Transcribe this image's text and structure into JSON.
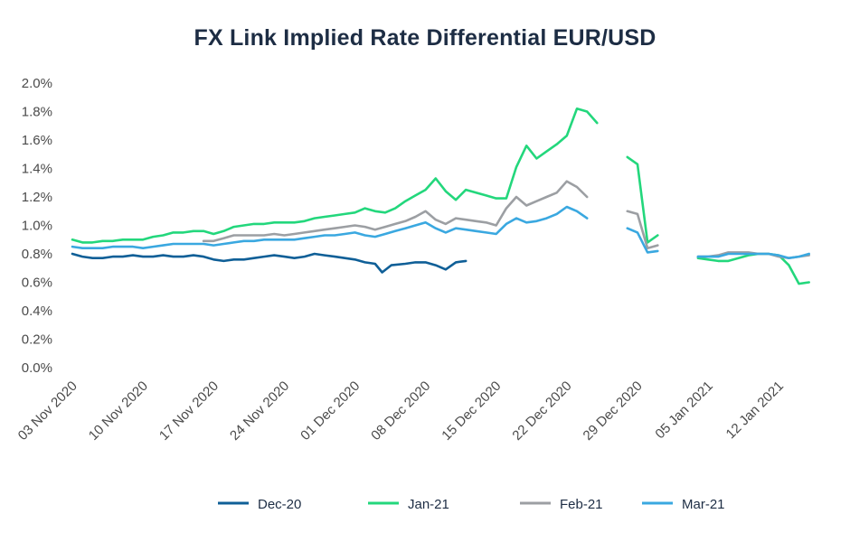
{
  "chart_data": {
    "type": "line",
    "title": "FX Link Implied Rate Differential EUR/USD",
    "xlabel": "",
    "ylabel": "",
    "ylim": [
      0,
      2.0
    ],
    "y_tick_format": "percent",
    "y_ticks": [
      "0.0%",
      "0.2%",
      "0.4%",
      "0.6%",
      "0.8%",
      "1.0%",
      "1.2%",
      "1.4%",
      "1.6%",
      "1.8%",
      "2.0%"
    ],
    "y_tick_values": [
      0,
      0.2,
      0.4,
      0.6,
      0.8,
      1.0,
      1.2,
      1.4,
      1.6,
      1.8,
      2.0
    ],
    "x_range": [
      0,
      75
    ],
    "x_ticks": [
      {
        "x": 0,
        "label": "03 Nov 2020"
      },
      {
        "x": 7,
        "label": "10 Nov 2020"
      },
      {
        "x": 14,
        "label": "17 Nov 2020"
      },
      {
        "x": 21,
        "label": "24 Nov 2020"
      },
      {
        "x": 28,
        "label": "01 Dec 2020"
      },
      {
        "x": 35,
        "label": "08 Dec 2020"
      },
      {
        "x": 42,
        "label": "15 Dec 2020"
      },
      {
        "x": 49,
        "label": "22 Dec 2020"
      },
      {
        "x": 56,
        "label": "29 Dec 2020"
      },
      {
        "x": 63,
        "label": "05 Jan 2021"
      },
      {
        "x": 70,
        "label": "12 Jan 2021"
      }
    ],
    "x_unit": "days since 03 Nov 2020",
    "legend_position": "bottom-center",
    "series": [
      {
        "name": "Dec-20",
        "color": "#0f5f97",
        "segments": [
          [
            [
              0,
              0.8
            ],
            [
              1,
              0.78
            ],
            [
              2,
              0.77
            ],
            [
              3,
              0.77
            ],
            [
              4,
              0.78
            ],
            [
              5,
              0.78
            ],
            [
              6,
              0.79
            ],
            [
              7,
              0.78
            ],
            [
              8,
              0.78
            ],
            [
              9,
              0.79
            ],
            [
              10,
              0.78
            ],
            [
              11,
              0.78
            ],
            [
              12,
              0.79
            ],
            [
              13,
              0.78
            ],
            [
              14,
              0.76
            ],
            [
              15,
              0.75
            ],
            [
              16,
              0.76
            ],
            [
              17,
              0.76
            ],
            [
              18,
              0.77
            ],
            [
              19,
              0.78
            ],
            [
              20,
              0.79
            ],
            [
              21,
              0.78
            ],
            [
              22,
              0.77
            ],
            [
              23,
              0.78
            ],
            [
              24,
              0.8
            ],
            [
              25,
              0.79
            ],
            [
              26,
              0.78
            ],
            [
              27,
              0.77
            ],
            [
              28,
              0.76
            ],
            [
              29,
              0.74
            ],
            [
              30,
              0.73
            ],
            [
              30.7,
              0.67
            ],
            [
              31.6,
              0.72
            ],
            [
              33,
              0.73
            ],
            [
              34,
              0.74
            ],
            [
              35,
              0.74
            ],
            [
              36,
              0.72
            ],
            [
              37,
              0.69
            ],
            [
              38,
              0.74
            ],
            [
              39,
              0.75
            ]
          ]
        ]
      },
      {
        "name": "Jan-21",
        "color": "#23d77c",
        "segments": [
          [
            [
              0,
              0.9
            ],
            [
              1,
              0.88
            ],
            [
              2,
              0.88
            ],
            [
              3,
              0.89
            ],
            [
              4,
              0.89
            ],
            [
              5,
              0.9
            ],
            [
              6,
              0.9
            ],
            [
              7,
              0.9
            ],
            [
              8,
              0.92
            ],
            [
              9,
              0.93
            ],
            [
              10,
              0.95
            ],
            [
              11,
              0.95
            ],
            [
              12,
              0.96
            ],
            [
              13,
              0.96
            ],
            [
              14,
              0.94
            ],
            [
              15,
              0.96
            ],
            [
              16,
              0.99
            ],
            [
              17,
              1.0
            ],
            [
              18,
              1.01
            ],
            [
              19,
              1.01
            ],
            [
              20,
              1.02
            ],
            [
              21,
              1.02
            ],
            [
              22,
              1.02
            ],
            [
              23,
              1.03
            ],
            [
              24,
              1.05
            ],
            [
              25,
              1.06
            ],
            [
              26,
              1.07
            ],
            [
              27,
              1.08
            ],
            [
              28,
              1.09
            ],
            [
              29,
              1.12
            ],
            [
              30,
              1.1
            ],
            [
              31,
              1.09
            ],
            [
              32,
              1.12
            ],
            [
              33,
              1.17
            ],
            [
              34,
              1.21
            ],
            [
              35,
              1.25
            ],
            [
              36,
              1.33
            ],
            [
              37,
              1.24
            ],
            [
              38,
              1.18
            ],
            [
              39,
              1.25
            ],
            [
              40,
              1.23
            ],
            [
              41,
              1.21
            ],
            [
              42,
              1.19
            ],
            [
              43,
              1.19
            ],
            [
              44,
              1.41
            ],
            [
              45,
              1.56
            ],
            [
              46,
              1.47
            ],
            [
              47,
              1.52
            ],
            [
              48,
              1.57
            ],
            [
              49,
              1.63
            ],
            [
              50,
              1.82
            ],
            [
              51,
              1.8
            ],
            [
              52,
              1.72
            ]
          ],
          [
            [
              55,
              1.48
            ],
            [
              56,
              1.43
            ],
            [
              57,
              0.88
            ],
            [
              58,
              0.93
            ]
          ],
          [
            [
              62,
              0.77
            ],
            [
              63,
              0.76
            ],
            [
              64,
              0.75
            ],
            [
              65,
              0.75
            ],
            [
              66,
              0.77
            ],
            [
              67,
              0.79
            ],
            [
              68,
              0.8
            ],
            [
              69,
              0.8
            ],
            [
              70,
              0.79
            ],
            [
              71,
              0.72
            ],
            [
              72,
              0.59
            ],
            [
              73,
              0.6
            ]
          ]
        ]
      },
      {
        "name": "Feb-21",
        "color": "#9c9fa3",
        "segments": [
          [
            [
              13,
              0.89
            ],
            [
              14,
              0.89
            ],
            [
              15,
              0.91
            ],
            [
              16,
              0.93
            ],
            [
              17,
              0.93
            ],
            [
              18,
              0.93
            ],
            [
              19,
              0.93
            ],
            [
              20,
              0.94
            ],
            [
              21,
              0.93
            ],
            [
              22,
              0.94
            ],
            [
              23,
              0.95
            ],
            [
              24,
              0.96
            ],
            [
              25,
              0.97
            ],
            [
              26,
              0.98
            ],
            [
              27,
              0.99
            ],
            [
              28,
              1.0
            ],
            [
              29,
              0.99
            ],
            [
              30,
              0.97
            ],
            [
              31,
              0.99
            ],
            [
              32,
              1.01
            ],
            [
              33,
              1.03
            ],
            [
              34,
              1.06
            ],
            [
              35,
              1.1
            ],
            [
              36,
              1.04
            ],
            [
              37,
              1.01
            ],
            [
              38,
              1.05
            ],
            [
              39,
              1.04
            ],
            [
              40,
              1.03
            ],
            [
              41,
              1.02
            ],
            [
              42,
              1.0
            ],
            [
              43,
              1.12
            ],
            [
              44,
              1.2
            ],
            [
              45,
              1.14
            ],
            [
              46,
              1.17
            ],
            [
              47,
              1.2
            ],
            [
              48,
              1.23
            ],
            [
              49,
              1.31
            ],
            [
              50,
              1.27
            ],
            [
              51,
              1.2
            ]
          ],
          [
            [
              55,
              1.1
            ],
            [
              56,
              1.08
            ],
            [
              57,
              0.84
            ],
            [
              58,
              0.86
            ]
          ],
          [
            [
              62,
              0.78
            ],
            [
              63,
              0.78
            ],
            [
              64,
              0.79
            ],
            [
              65,
              0.81
            ],
            [
              66,
              0.81
            ],
            [
              67,
              0.81
            ],
            [
              68,
              0.8
            ],
            [
              69,
              0.8
            ],
            [
              70,
              0.78
            ],
            [
              71,
              0.77
            ],
            [
              72,
              0.78
            ],
            [
              73,
              0.79
            ]
          ]
        ]
      },
      {
        "name": "Mar-21",
        "color": "#3aa8e0",
        "segments": [
          [
            [
              0,
              0.85
            ],
            [
              1,
              0.84
            ],
            [
              2,
              0.84
            ],
            [
              3,
              0.84
            ],
            [
              4,
              0.85
            ],
            [
              5,
              0.85
            ],
            [
              6,
              0.85
            ],
            [
              7,
              0.84
            ],
            [
              8,
              0.85
            ],
            [
              9,
              0.86
            ],
            [
              10,
              0.87
            ],
            [
              11,
              0.87
            ],
            [
              12,
              0.87
            ],
            [
              13,
              0.87
            ],
            [
              14,
              0.86
            ],
            [
              15,
              0.87
            ],
            [
              16,
              0.88
            ],
            [
              17,
              0.89
            ],
            [
              18,
              0.89
            ],
            [
              19,
              0.9
            ],
            [
              20,
              0.9
            ],
            [
              21,
              0.9
            ],
            [
              22,
              0.9
            ],
            [
              23,
              0.91
            ],
            [
              24,
              0.92
            ],
            [
              25,
              0.93
            ],
            [
              26,
              0.93
            ],
            [
              27,
              0.94
            ],
            [
              28,
              0.95
            ],
            [
              29,
              0.93
            ],
            [
              30,
              0.92
            ],
            [
              31,
              0.94
            ],
            [
              32,
              0.96
            ],
            [
              33,
              0.98
            ],
            [
              34,
              1.0
            ],
            [
              35,
              1.02
            ],
            [
              36,
              0.98
            ],
            [
              37,
              0.95
            ],
            [
              38,
              0.98
            ],
            [
              39,
              0.97
            ],
            [
              40,
              0.96
            ],
            [
              41,
              0.95
            ],
            [
              42,
              0.94
            ],
            [
              43,
              1.01
            ],
            [
              44,
              1.05
            ],
            [
              45,
              1.02
            ],
            [
              46,
              1.03
            ],
            [
              47,
              1.05
            ],
            [
              48,
              1.08
            ],
            [
              49,
              1.13
            ],
            [
              50,
              1.1
            ],
            [
              51,
              1.05
            ]
          ],
          [
            [
              55,
              0.98
            ],
            [
              56,
              0.95
            ],
            [
              57,
              0.81
            ],
            [
              58,
              0.82
            ]
          ],
          [
            [
              62,
              0.78
            ],
            [
              63,
              0.78
            ],
            [
              64,
              0.78
            ],
            [
              65,
              0.8
            ],
            [
              66,
              0.8
            ],
            [
              67,
              0.8
            ],
            [
              68,
              0.8
            ],
            [
              69,
              0.8
            ],
            [
              70,
              0.79
            ],
            [
              71,
              0.77
            ],
            [
              72,
              0.78
            ],
            [
              73,
              0.8
            ]
          ]
        ]
      }
    ]
  }
}
